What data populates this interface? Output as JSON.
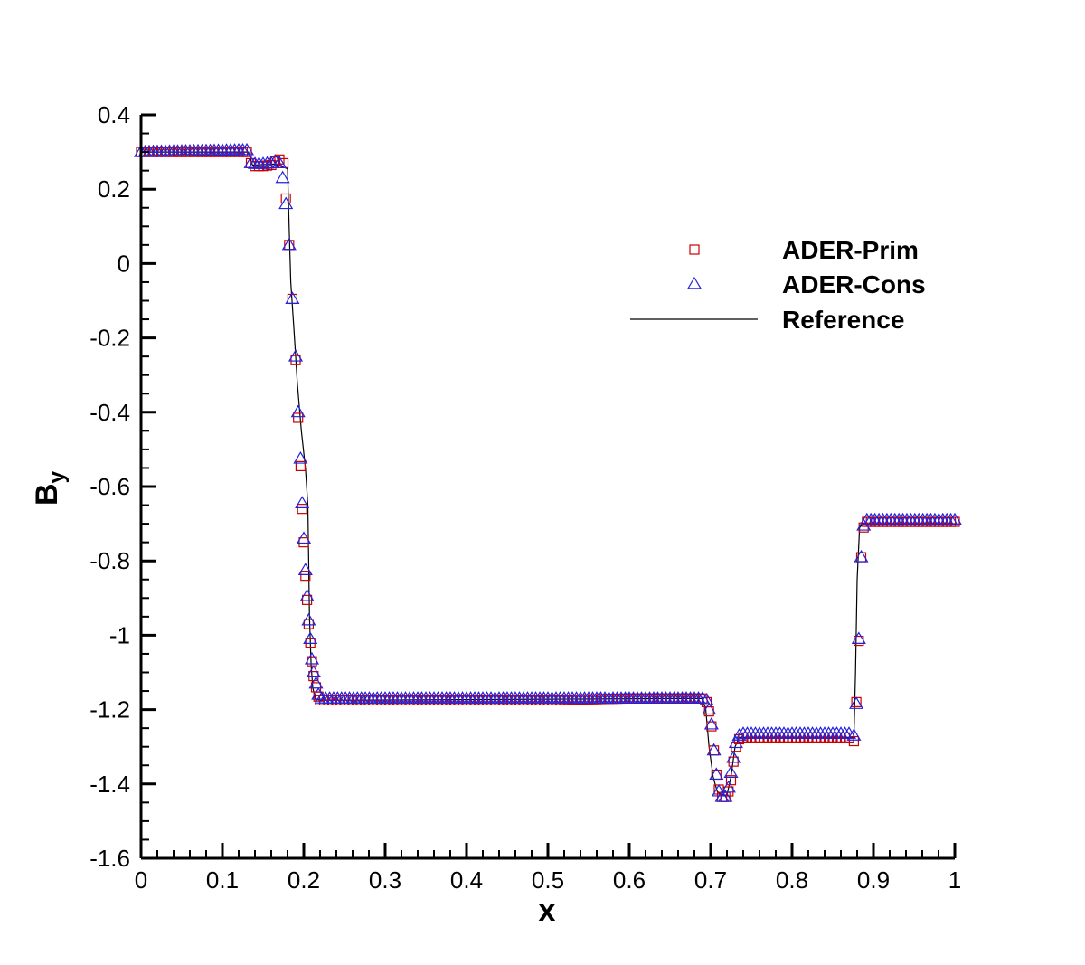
{
  "chart_data": {
    "type": "scatter",
    "xlabel": "x",
    "ylabel_main": "B",
    "ylabel_sub": "y",
    "xlim": [
      0,
      1
    ],
    "ylim": [
      -1.6,
      0.4
    ],
    "x_ticks": [
      0,
      0.1,
      0.2,
      0.3,
      0.4,
      0.5,
      0.6,
      0.7,
      0.8,
      0.9,
      1
    ],
    "x_tick_labels": [
      "0",
      "0.1",
      "0.2",
      "0.3",
      "0.4",
      "0.5",
      "0.6",
      "0.7",
      "0.8",
      "0.9",
      "1"
    ],
    "y_ticks": [
      0.4,
      0.2,
      0,
      -0.2,
      -0.4,
      -0.6,
      -0.8,
      -1,
      -1.2,
      -1.4,
      -1.6
    ],
    "y_tick_labels": [
      "0.4",
      "0.2",
      "0",
      "-0.2",
      "-0.4",
      "-0.6",
      "-0.8",
      "-1",
      "-1.2",
      "-1.4",
      "-1.6"
    ],
    "grid": false,
    "legend_position": "top-right",
    "series": [
      {
        "name": "ADER-Prim",
        "marker": "square",
        "color": "#cc0000",
        "points": [
          [
            0.0,
            0.3
          ],
          [
            0.13,
            0.3
          ],
          [
            0.135,
            0.27
          ],
          [
            0.14,
            0.262
          ],
          [
            0.15,
            0.262
          ],
          [
            0.16,
            0.265
          ],
          [
            0.165,
            0.275
          ],
          [
            0.17,
            0.28
          ],
          [
            0.175,
            0.27
          ],
          [
            0.178,
            0.175
          ],
          [
            0.182,
            0.05
          ],
          [
            0.186,
            -0.095
          ],
          [
            0.19,
            -0.26
          ],
          [
            0.193,
            -0.415
          ],
          [
            0.196,
            -0.545
          ],
          [
            0.198,
            -0.66
          ],
          [
            0.2,
            -0.75
          ],
          [
            0.202,
            -0.84
          ],
          [
            0.204,
            -0.905
          ],
          [
            0.206,
            -0.97
          ],
          [
            0.208,
            -1.02
          ],
          [
            0.21,
            -1.07
          ],
          [
            0.212,
            -1.11
          ],
          [
            0.215,
            -1.14
          ],
          [
            0.218,
            -1.165
          ],
          [
            0.22,
            -1.175
          ],
          [
            0.3,
            -1.175
          ],
          [
            0.5,
            -1.175
          ],
          [
            0.6,
            -1.17
          ],
          [
            0.69,
            -1.17
          ],
          [
            0.695,
            -1.18
          ],
          [
            0.698,
            -1.205
          ],
          [
            0.701,
            -1.245
          ],
          [
            0.704,
            -1.31
          ],
          [
            0.707,
            -1.375
          ],
          [
            0.71,
            -1.415
          ],
          [
            0.714,
            -1.435
          ],
          [
            0.718,
            -1.435
          ],
          [
            0.722,
            -1.42
          ],
          [
            0.725,
            -1.39
          ],
          [
            0.728,
            -1.34
          ],
          [
            0.731,
            -1.3
          ],
          [
            0.735,
            -1.28
          ],
          [
            0.74,
            -1.275
          ],
          [
            0.8,
            -1.275
          ],
          [
            0.87,
            -1.275
          ],
          [
            0.876,
            -1.285
          ],
          [
            0.879,
            -1.18
          ],
          [
            0.882,
            -1.015
          ],
          [
            0.885,
            -0.79
          ],
          [
            0.888,
            -0.71
          ],
          [
            0.892,
            -0.695
          ],
          [
            1.0,
            -0.695
          ]
        ]
      },
      {
        "name": "ADER-Cons",
        "marker": "triangle",
        "color": "#2222dd",
        "points": [
          [
            0.0,
            0.3
          ],
          [
            0.13,
            0.305
          ],
          [
            0.135,
            0.27
          ],
          [
            0.14,
            0.268
          ],
          [
            0.15,
            0.268
          ],
          [
            0.16,
            0.27
          ],
          [
            0.165,
            0.275
          ],
          [
            0.17,
            0.27
          ],
          [
            0.174,
            0.23
          ],
          [
            0.178,
            0.16
          ],
          [
            0.182,
            0.05
          ],
          [
            0.186,
            -0.095
          ],
          [
            0.19,
            -0.25
          ],
          [
            0.193,
            -0.4
          ],
          [
            0.196,
            -0.525
          ],
          [
            0.198,
            -0.645
          ],
          [
            0.2,
            -0.74
          ],
          [
            0.202,
            -0.825
          ],
          [
            0.204,
            -0.895
          ],
          [
            0.206,
            -0.96
          ],
          [
            0.208,
            -1.01
          ],
          [
            0.21,
            -1.065
          ],
          [
            0.212,
            -1.1
          ],
          [
            0.215,
            -1.13
          ],
          [
            0.218,
            -1.16
          ],
          [
            0.222,
            -1.17
          ],
          [
            0.3,
            -1.17
          ],
          [
            0.5,
            -1.17
          ],
          [
            0.6,
            -1.17
          ],
          [
            0.69,
            -1.17
          ],
          [
            0.695,
            -1.175
          ],
          [
            0.698,
            -1.2
          ],
          [
            0.701,
            -1.24
          ],
          [
            0.704,
            -1.31
          ],
          [
            0.707,
            -1.375
          ],
          [
            0.71,
            -1.42
          ],
          [
            0.714,
            -1.435
          ],
          [
            0.718,
            -1.435
          ],
          [
            0.722,
            -1.41
          ],
          [
            0.725,
            -1.37
          ],
          [
            0.728,
            -1.33
          ],
          [
            0.731,
            -1.29
          ],
          [
            0.735,
            -1.27
          ],
          [
            0.74,
            -1.265
          ],
          [
            0.8,
            -1.265
          ],
          [
            0.87,
            -1.265
          ],
          [
            0.876,
            -1.27
          ],
          [
            0.879,
            -1.185
          ],
          [
            0.882,
            -1.01
          ],
          [
            0.885,
            -0.79
          ],
          [
            0.888,
            -0.705
          ],
          [
            0.892,
            -0.69
          ],
          [
            1.0,
            -0.69
          ]
        ]
      },
      {
        "name": "Reference",
        "marker": "line",
        "color": "#000000",
        "points": [
          [
            0.0,
            0.3
          ],
          [
            0.132,
            0.3
          ],
          [
            0.137,
            0.265
          ],
          [
            0.165,
            0.268
          ],
          [
            0.18,
            0.255
          ],
          [
            0.182,
            0.1
          ],
          [
            0.184,
            -0.05
          ],
          [
            0.188,
            -0.18
          ],
          [
            0.192,
            -0.32
          ],
          [
            0.197,
            -0.45
          ],
          [
            0.202,
            -0.55
          ],
          [
            0.205,
            -0.65
          ],
          [
            0.206,
            -0.8
          ],
          [
            0.207,
            -0.95
          ],
          [
            0.209,
            -1.08
          ],
          [
            0.211,
            -1.14
          ],
          [
            0.214,
            -1.17
          ],
          [
            0.22,
            -1.175
          ],
          [
            0.5,
            -1.172
          ],
          [
            0.69,
            -1.17
          ],
          [
            0.694,
            -1.2
          ],
          [
            0.698,
            -1.3
          ],
          [
            0.703,
            -1.38
          ],
          [
            0.708,
            -1.42
          ],
          [
            0.713,
            -1.43
          ],
          [
            0.72,
            -1.43
          ],
          [
            0.725,
            -1.38
          ],
          [
            0.73,
            -1.3
          ],
          [
            0.735,
            -1.275
          ],
          [
            0.8,
            -1.275
          ],
          [
            0.876,
            -1.275
          ],
          [
            0.878,
            -1.1
          ],
          [
            0.88,
            -0.85
          ],
          [
            0.883,
            -0.71
          ],
          [
            0.888,
            -0.7
          ],
          [
            1.0,
            -0.7
          ]
        ]
      }
    ]
  }
}
